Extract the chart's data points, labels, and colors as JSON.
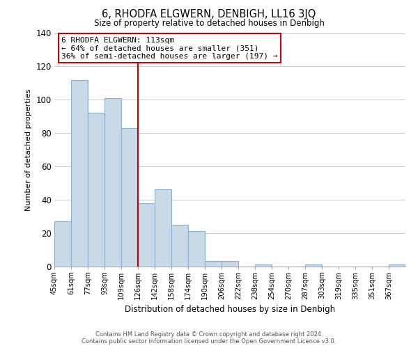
{
  "title": "6, RHODFA ELGWERN, DENBIGH, LL16 3JQ",
  "subtitle": "Size of property relative to detached houses in Denbigh",
  "xlabel": "Distribution of detached houses by size in Denbigh",
  "ylabel": "Number of detached properties",
  "bin_labels": [
    "45sqm",
    "61sqm",
    "77sqm",
    "93sqm",
    "109sqm",
    "126sqm",
    "142sqm",
    "158sqm",
    "174sqm",
    "190sqm",
    "206sqm",
    "222sqm",
    "238sqm",
    "254sqm",
    "270sqm",
    "287sqm",
    "303sqm",
    "319sqm",
    "335sqm",
    "351sqm",
    "367sqm"
  ],
  "bar_heights": [
    27,
    112,
    92,
    101,
    83,
    38,
    46,
    25,
    21,
    3,
    3,
    0,
    1,
    0,
    0,
    1,
    0,
    0,
    0,
    0,
    1
  ],
  "bar_color": "#c8d9e8",
  "bar_edge_color": "#8ab0cc",
  "vline_color": "#cc0000",
  "annotation_line1": "6 RHODFA ELGWERN: 113sqm",
  "annotation_line2": "← 64% of detached houses are smaller (351)",
  "annotation_line3": "36% of semi-detached houses are larger (197) →",
  "annotation_box_color": "#ffffff",
  "annotation_box_edge": "#cc0000",
  "ylim": [
    0,
    140
  ],
  "yticks": [
    0,
    20,
    40,
    60,
    80,
    100,
    120,
    140
  ],
  "footer_line1": "Contains HM Land Registry data © Crown copyright and database right 2024.",
  "footer_line2": "Contains public sector information licensed under the Open Government Licence v3.0.",
  "bg_color": "#ffffff",
  "grid_color": "#cccccc"
}
